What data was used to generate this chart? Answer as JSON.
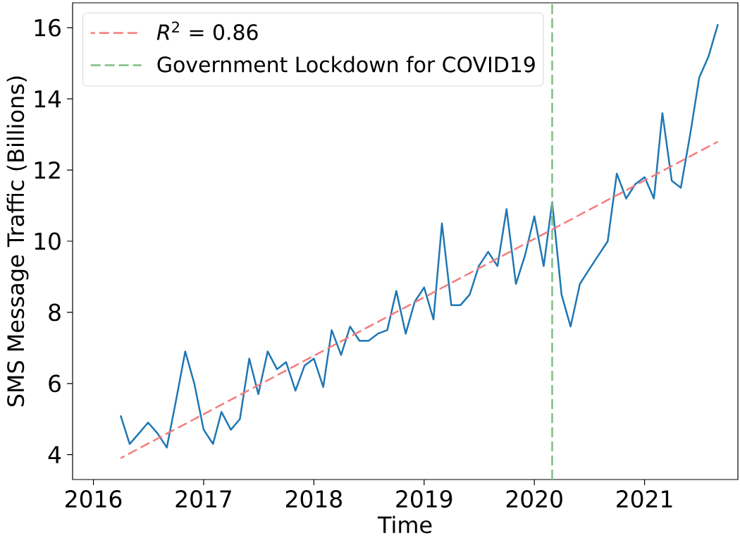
{
  "chart_data": {
    "type": "line",
    "xlabel": "Time",
    "ylabel": "SMS Message Traffic (Billions)",
    "x": [
      "2016-04",
      "2016-05",
      "2016-06",
      "2016-07",
      "2016-08",
      "2016-09",
      "2016-10",
      "2016-11",
      "2016-12",
      "2017-01",
      "2017-02",
      "2017-03",
      "2017-04",
      "2017-05",
      "2017-06",
      "2017-07",
      "2017-08",
      "2017-09",
      "2017-10",
      "2017-11",
      "2017-12",
      "2018-01",
      "2018-02",
      "2018-03",
      "2018-04",
      "2018-05",
      "2018-06",
      "2018-07",
      "2018-08",
      "2018-09",
      "2018-10",
      "2018-11",
      "2018-12",
      "2019-01",
      "2019-02",
      "2019-03",
      "2019-04",
      "2019-05",
      "2019-06",
      "2019-07",
      "2019-08",
      "2019-09",
      "2019-10",
      "2019-11",
      "2019-12",
      "2020-01",
      "2020-02",
      "2020-03",
      "2020-04",
      "2020-05",
      "2020-06",
      "2020-07",
      "2020-08",
      "2020-09",
      "2020-10",
      "2020-11",
      "2020-12",
      "2021-01",
      "2021-02",
      "2021-03",
      "2021-04",
      "2021-05",
      "2021-06",
      "2021-07",
      "2021-08",
      "2021-09"
    ],
    "series": [
      {
        "color": "#1f77b4",
        "values": [
          5.1,
          4.3,
          4.6,
          4.9,
          4.6,
          4.2,
          5.5,
          6.9,
          6.0,
          4.7,
          4.3,
          5.2,
          4.7,
          5.0,
          6.7,
          5.7,
          6.9,
          6.4,
          6.6,
          5.8,
          6.5,
          6.7,
          5.9,
          7.5,
          6.8,
          7.6,
          7.2,
          7.2,
          7.4,
          7.5,
          8.6,
          7.4,
          8.3,
          8.7,
          7.8,
          10.5,
          8.2,
          8.2,
          8.5,
          9.3,
          9.7,
          9.3,
          10.9,
          8.8,
          9.6,
          10.7,
          9.3,
          11.1,
          8.5,
          7.6,
          8.8,
          9.2,
          9.6,
          10.0,
          11.9,
          11.2,
          11.6,
          11.8,
          11.2,
          13.6,
          11.7,
          11.5,
          13.0,
          14.6,
          15.2,
          16.1
        ]
      },
      {
        "type": "line",
        "name": "*R*$^{2}$ = 0.86",
        "color": "#f47c7c",
        "line_style": "dashed",
        "x": [
          "2016-04",
          "2021-09"
        ],
        "values": [
          3.9,
          12.8
        ]
      }
    ],
    "ref_lines": [
      {
        "axis": "x",
        "value": "2020-03",
        "label": "Government Lockdown for COVID19",
        "color": "#7fbf7f",
        "line_style": "dashed"
      }
    ],
    "xlim": [
      "2015-10-24",
      "2021-11-06"
    ],
    "ylim": [
      3.3,
      16.7
    ],
    "xticks": [
      {
        "value": "2016",
        "label": "2016"
      },
      {
        "value": "2017",
        "label": "2017"
      },
      {
        "value": "2018",
        "label": "2018"
      },
      {
        "value": "2019",
        "label": "2019"
      },
      {
        "value": "2020",
        "label": "2020"
      },
      {
        "value": "2021",
        "label": "2021"
      }
    ],
    "yticks": [
      4,
      6,
      8,
      10,
      12,
      14,
      16
    ],
    "legend": "top left",
    "grid": false
  }
}
